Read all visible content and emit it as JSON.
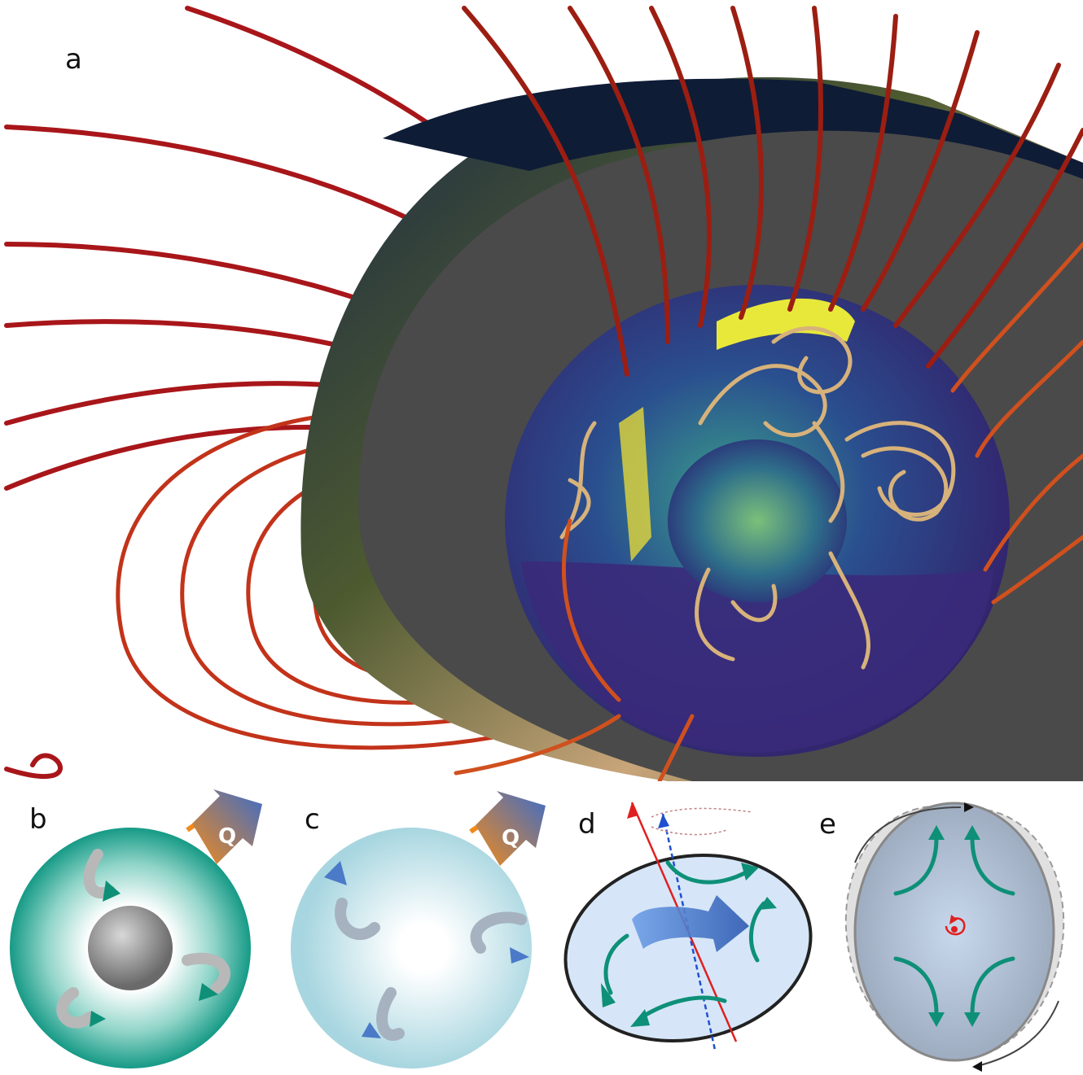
{
  "figure": {
    "panels": [
      {
        "label": "a",
        "depicts": "earth-cutaway-magnetic-field"
      },
      {
        "label": "b",
        "depicts": "thermal-convection-core",
        "flux_label": "Q"
      },
      {
        "label": "c",
        "depicts": "convection-without-inner-core",
        "flux_label": "Q"
      },
      {
        "label": "d",
        "depicts": "precession-driven-flow"
      },
      {
        "label": "e",
        "depicts": "tidal-libration-driven-flow"
      }
    ]
  },
  "colors": {
    "field_line_outer": "#b01818",
    "field_line_inner": "#e0601e",
    "field_line_core": "#d8b47a",
    "mantle_gray": "#4a4a4a",
    "ocean": "#0e1a33",
    "core_purple": "#3b2a78",
    "core_teal": "#1f8a8a",
    "core_yellow": "#e8e83a",
    "teal_shell": "#1aa090",
    "arrow_teal": "#0e9078",
    "arrow_blue": "#3d6cc8",
    "heat_orange": "#f08a1c",
    "rotation_red": "#e02020",
    "axis_blue": "#2050d0"
  }
}
